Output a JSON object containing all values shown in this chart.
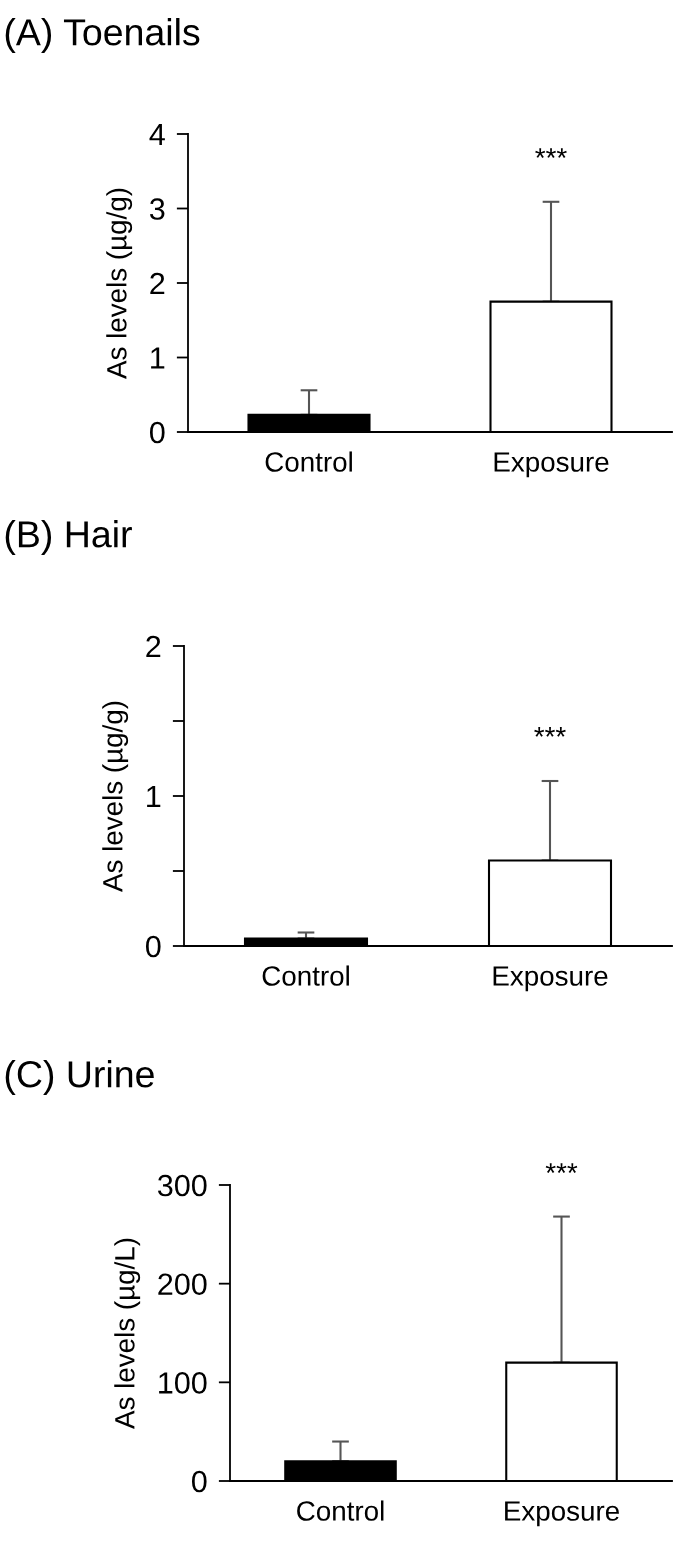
{
  "chart_data": [
    {
      "type": "bar",
      "title": "(A) Toenails",
      "ylabel": "As levels (µg/g)",
      "categories": [
        "Control",
        "Exposure"
      ],
      "values": [
        0.23,
        1.75
      ],
      "colors": [
        "#000000",
        "#ffffff"
      ],
      "errors": [
        [
          0.23,
          0.56
        ],
        [
          1.75,
          3.09
        ]
      ],
      "ylim": [
        0,
        4
      ],
      "yticks": [
        0,
        1,
        2,
        3,
        4
      ],
      "grid": false,
      "annotations": [
        "***"
      ]
    },
    {
      "type": "bar",
      "title": "(B) Hair",
      "ylabel": "As levels (µg/g)",
      "categories": [
        "Control",
        "Exposure"
      ],
      "values": [
        0.05,
        0.57
      ],
      "colors": [
        "#000000",
        "#ffffff"
      ],
      "errors": [
        [
          0.05,
          0.09
        ],
        [
          0.57,
          1.1
        ]
      ],
      "ylim": [
        0,
        2
      ],
      "yticks": [
        0,
        {
          "value": 0.5,
          "label": null
        },
        1,
        {
          "value": 1.5,
          "label": null
        },
        2
      ],
      "grid": false,
      "annotations": [
        "***"
      ]
    },
    {
      "type": "bar",
      "title": "(C) Urine",
      "ylabel": "As levels (µg/L)",
      "categories": [
        "Control",
        "Exposure"
      ],
      "values": [
        20,
        120
      ],
      "colors": [
        "#000000",
        "#ffffff"
      ],
      "errors": [
        [
          20,
          40
        ],
        [
          120,
          268
        ]
      ],
      "ylim": [
        0,
        300
      ],
      "yticks": [
        0,
        100,
        200,
        300
      ],
      "grid": false,
      "annotations": [
        "***"
      ]
    }
  ]
}
